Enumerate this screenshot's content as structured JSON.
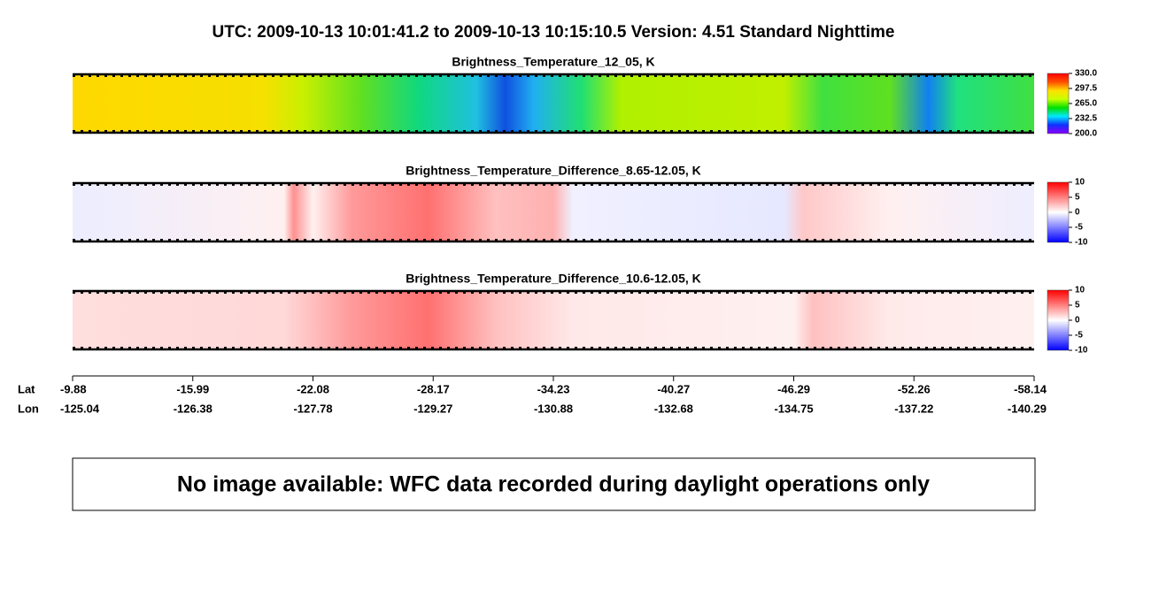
{
  "title": "UTC:  2009-10-13   10:01:41.2  to  2009-10-13   10:15:10.5    Version: 4.51  Standard Nighttime",
  "chart_data": [
    {
      "type": "heatmap",
      "title": "Brightness_Temperature_12_05, K",
      "colorscale": [
        "#8a00ff",
        "#1030ff",
        "#00e8ff",
        "#00e000",
        "#c8ff00",
        "#ffe000",
        "#ff5000",
        "#ff0000"
      ],
      "clim": [
        200,
        330
      ],
      "cticks": [
        {
          "value": 200,
          "label": "200.0"
        },
        {
          "value": 232.5,
          "label": "232.5"
        },
        {
          "value": 265,
          "label": "265.0"
        },
        {
          "value": 297.5,
          "label": "297.5"
        },
        {
          "value": 330,
          "label": "330.0"
        }
      ]
    },
    {
      "type": "heatmap",
      "title": "Brightness_Temperature_Difference_8.65-12.05, K",
      "colorscale": [
        "#0000ff",
        "#8080ff",
        "#ffffff",
        "#ff8080",
        "#ff0000"
      ],
      "clim": [
        -10,
        10
      ],
      "cticks": [
        -10,
        -5,
        0,
        5,
        10
      ]
    },
    {
      "type": "heatmap",
      "title": "Brightness_Temperature_Difference_10.6-12.05, K",
      "colorscale": [
        "#0000ff",
        "#8080ff",
        "#ffffff",
        "#ff8080",
        "#ff0000"
      ],
      "clim": [
        -10,
        10
      ],
      "cticks": [
        -10,
        -5,
        0,
        5,
        10
      ]
    }
  ],
  "x_axis": {
    "lat_label": "Lat",
    "lon_label": "Lon",
    "lat": [
      -9.88,
      -15.99,
      -22.08,
      -28.17,
      -34.23,
      -40.27,
      -46.29,
      -52.26,
      -58.14
    ],
    "lon": [
      -125.04,
      -126.38,
      -127.78,
      -129.27,
      -130.88,
      -132.68,
      -134.75,
      -137.22,
      -140.29
    ]
  },
  "notice": "No image available: WFC data recorded during daylight operations only"
}
